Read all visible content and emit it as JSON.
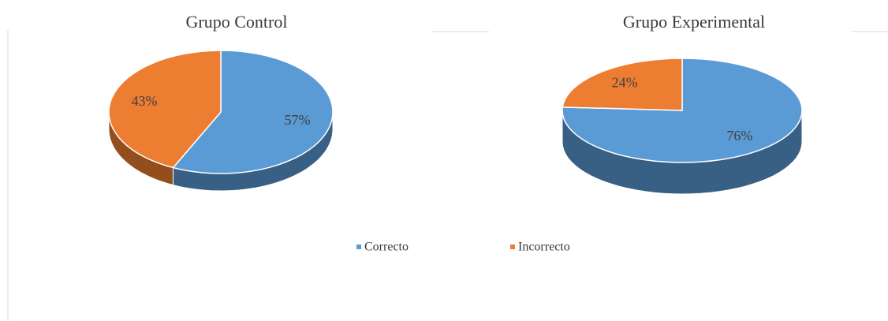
{
  "chart_data": [
    {
      "type": "pie",
      "title": "Grupo Control",
      "categories": [
        "Correcto",
        "Incorrecto"
      ],
      "values": [
        57,
        43
      ],
      "value_labels": [
        "57%",
        "43%"
      ],
      "colors": [
        "#5b9bd5",
        "#ed7d31"
      ]
    },
    {
      "type": "pie",
      "title": "Grupo Experimental",
      "values": [
        76,
        24
      ],
      "value_labels": [
        "76%",
        "24%"
      ],
      "colors": [
        "#5b9bd5",
        "#ed7d31"
      ]
    }
  ]
}
